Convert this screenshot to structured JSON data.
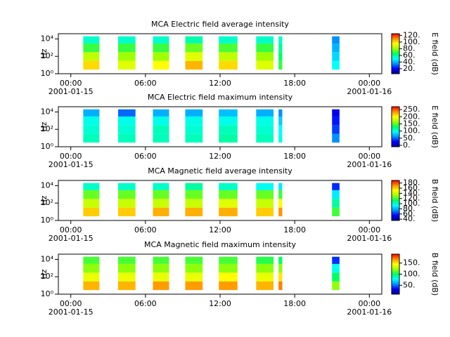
{
  "colormap": [
    "#000090",
    "#0000ff",
    "#0090ff",
    "#00ffff",
    "#00ff60",
    "#a0ff00",
    "#ffff00",
    "#ff9000",
    "#ff0000"
  ],
  "chart_data": [
    {
      "type": "heatmap",
      "title": "MCA  Electric field average intensity",
      "ylabel": "Hz",
      "zlabel": "E field (dB)",
      "xlim": [
        -1,
        25
      ],
      "xticks": [
        {
          "value": 0,
          "label": "00:00"
        },
        {
          "value": 6,
          "label": "06:00"
        },
        {
          "value": 12,
          "label": "12:00"
        },
        {
          "value": 18,
          "label": "18:00"
        },
        {
          "value": 24,
          "label": "00:00"
        }
      ],
      "x_dates": [
        {
          "value": 0,
          "label": "2001-01-15"
        },
        {
          "value": 24,
          "label": "2001-01-16"
        }
      ],
      "ylim": [
        1,
        40000
      ],
      "log_y": true,
      "yticks": [
        {
          "value": 1,
          "label": "10⁰"
        },
        {
          "value": 100,
          "label": "10²"
        },
        {
          "value": 10000,
          "label": "10⁴"
        }
      ],
      "clim": [
        5,
        125
      ],
      "cticks": [
        {
          "value": 20,
          "label": "20."
        },
        {
          "value": 40,
          "label": "40."
        },
        {
          "value": 60,
          "label": "60."
        },
        {
          "value": 80,
          "label": "80."
        },
        {
          "value": 100,
          "label": "100."
        },
        {
          "value": 120,
          "label": "120."
        }
      ],
      "x_start": [
        1.0,
        3.8,
        6.6,
        9.2,
        11.9,
        14.9,
        16.7,
        21.0
      ],
      "x_end": [
        2.3,
        5.2,
        7.9,
        10.6,
        13.4,
        16.3,
        17.0,
        21.6
      ],
      "y_edges": [
        3,
        30,
        300,
        3000,
        20000
      ],
      "values": [
        [
          100,
          85,
          70,
          55
        ],
        [
          90,
          80,
          70,
          55
        ],
        [
          95,
          80,
          70,
          55
        ],
        [
          105,
          90,
          75,
          58
        ],
        [
          100,
          85,
          72,
          55
        ],
        [
          90,
          80,
          70,
          55
        ],
        [
          70,
          65,
          60,
          55
        ],
        [
          50,
          45,
          40,
          35
        ]
      ]
    },
    {
      "type": "heatmap",
      "title": "MCA  Electric field maximum intensity",
      "ylabel": "Hz",
      "zlabel": "E field (dB)",
      "xlim": [
        -1,
        25
      ],
      "xticks": [
        {
          "value": 0,
          "label": "00:00"
        },
        {
          "value": 6,
          "label": "06:00"
        },
        {
          "value": 12,
          "label": "12:00"
        },
        {
          "value": 18,
          "label": "18:00"
        },
        {
          "value": 24,
          "label": "00:00"
        }
      ],
      "x_dates": [
        {
          "value": 0,
          "label": "2001-01-15"
        },
        {
          "value": 24,
          "label": "2001-01-16"
        }
      ],
      "ylim": [
        1,
        40000
      ],
      "log_y": true,
      "yticks": [
        {
          "value": 1,
          "label": "10⁰"
        },
        {
          "value": 100,
          "label": "10²"
        },
        {
          "value": 10000,
          "label": "10⁴"
        }
      ],
      "clim": [
        -10,
        270
      ],
      "cticks": [
        {
          "value": 0,
          "label": "0."
        },
        {
          "value": 50,
          "label": "50."
        },
        {
          "value": 100,
          "label": "100."
        },
        {
          "value": 150,
          "label": "150."
        },
        {
          "value": 200,
          "label": "200."
        },
        {
          "value": 250,
          "label": "250."
        }
      ],
      "x_start": [
        1.0,
        3.8,
        6.6,
        9.2,
        11.9,
        14.9,
        16.7,
        21.0
      ],
      "x_end": [
        2.3,
        5.2,
        7.9,
        10.6,
        13.4,
        16.3,
        17.0,
        21.6
      ],
      "y_edges": [
        3,
        30,
        300,
        3000,
        20000
      ],
      "values": [
        [
          110,
          105,
          100,
          70
        ],
        [
          110,
          105,
          100,
          50
        ],
        [
          110,
          110,
          100,
          70
        ],
        [
          110,
          105,
          100,
          70
        ],
        [
          115,
          110,
          100,
          75
        ],
        [
          110,
          105,
          100,
          70
        ],
        [
          100,
          95,
          80,
          60
        ],
        [
          60,
          40,
          30,
          20
        ]
      ]
    },
    {
      "type": "heatmap",
      "title": "MCA  Magnetic field average intensity",
      "ylabel": "Hz",
      "zlabel": "B field (dB)",
      "xlim": [
        -1,
        25
      ],
      "xticks": [
        {
          "value": 0,
          "label": "00:00"
        },
        {
          "value": 6,
          "label": "06:00"
        },
        {
          "value": 12,
          "label": "12:00"
        },
        {
          "value": 18,
          "label": "18:00"
        },
        {
          "value": 24,
          "label": "00:00"
        }
      ],
      "x_dates": [
        {
          "value": 0,
          "label": "2001-01-15"
        },
        {
          "value": 24,
          "label": "2001-01-16"
        }
      ],
      "ylim": [
        1,
        40000
      ],
      "log_y": true,
      "yticks": [
        {
          "value": 1,
          "label": "10⁰"
        },
        {
          "value": 100,
          "label": "10²"
        },
        {
          "value": 10000,
          "label": "10⁴"
        }
      ],
      "clim": [
        35,
        190
      ],
      "cticks": [
        {
          "value": 40,
          "label": "40."
        },
        {
          "value": 60,
          "label": "60."
        },
        {
          "value": 80,
          "label": "80."
        },
        {
          "value": 100,
          "label": "100."
        },
        {
          "value": 120,
          "label": "120."
        },
        {
          "value": 140,
          "label": "140."
        },
        {
          "value": 160,
          "label": "160."
        },
        {
          "value": 180,
          "label": "180."
        }
      ],
      "x_start": [
        1.0,
        3.8,
        6.6,
        9.2,
        11.9,
        14.9,
        16.7,
        21.0
      ],
      "x_end": [
        2.3,
        5.2,
        7.9,
        10.6,
        13.4,
        16.3,
        17.0,
        21.6
      ],
      "y_edges": [
        3,
        30,
        300,
        3000,
        20000
      ],
      "values": [
        [
          160,
          140,
          125,
          100
        ],
        [
          160,
          140,
          125,
          100
        ],
        [
          165,
          140,
          125,
          100
        ],
        [
          165,
          140,
          125,
          105
        ],
        [
          165,
          145,
          125,
          100
        ],
        [
          160,
          140,
          125,
          95
        ],
        [
          170,
          150,
          120,
          90
        ],
        [
          120,
          105,
          90,
          60
        ]
      ]
    },
    {
      "type": "heatmap",
      "title": "MCA  Magnetic field maximum intensity",
      "ylabel": "Hz",
      "zlabel": "B field (dB)",
      "xlim": [
        -1,
        25
      ],
      "xticks": [
        {
          "value": 0,
          "label": "00:00"
        },
        {
          "value": 6,
          "label": "06:00"
        },
        {
          "value": 12,
          "label": "12:00"
        },
        {
          "value": 18,
          "label": "18:00"
        },
        {
          "value": 24,
          "label": "00:00"
        }
      ],
      "x_dates": [
        {
          "value": 0,
          "label": "2001-01-15"
        },
        {
          "value": 24,
          "label": "2001-01-16"
        }
      ],
      "ylim": [
        1,
        40000
      ],
      "log_y": true,
      "yticks": [
        {
          "value": 1,
          "label": "10⁰"
        },
        {
          "value": 100,
          "label": "10²"
        },
        {
          "value": 10000,
          "label": "10⁴"
        }
      ],
      "clim": [
        10,
        190
      ],
      "cticks": [
        {
          "value": 50,
          "label": "50."
        },
        {
          "value": 100,
          "label": "100."
        },
        {
          "value": 150,
          "label": "150."
        }
      ],
      "x_start": [
        1.0,
        3.8,
        6.6,
        9.2,
        11.9,
        14.9,
        16.7,
        21.0
      ],
      "x_end": [
        2.3,
        5.2,
        7.9,
        10.6,
        13.4,
        16.3,
        17.0,
        21.6
      ],
      "y_edges": [
        3,
        30,
        300,
        3000,
        20000
      ],
      "values": [
        [
          160,
          140,
          120,
          110
        ],
        [
          160,
          140,
          120,
          110
        ],
        [
          165,
          140,
          120,
          110
        ],
        [
          165,
          140,
          120,
          110
        ],
        [
          165,
          145,
          120,
          110
        ],
        [
          160,
          140,
          120,
          105
        ],
        [
          170,
          150,
          120,
          100
        ],
        [
          120,
          100,
          80,
          40
        ]
      ]
    }
  ]
}
